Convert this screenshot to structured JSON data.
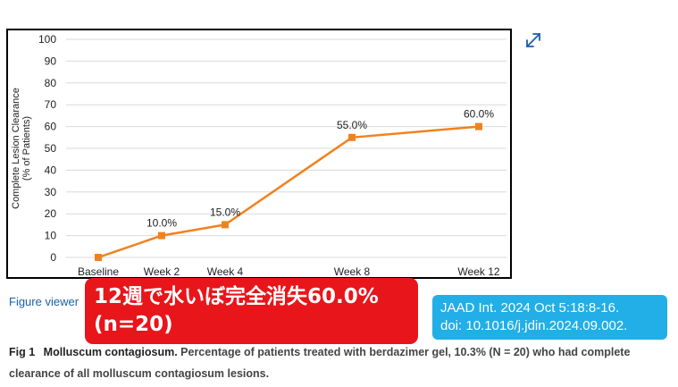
{
  "chart_data": {
    "type": "line",
    "categories": [
      "Baseline",
      "Week 2",
      "Week 4",
      "Week 8",
      "Week 12"
    ],
    "x": [
      0,
      2,
      4,
      8,
      12
    ],
    "series": [
      {
        "values": [
          0,
          10,
          15,
          55,
          60
        ],
        "data_labels": [
          "",
          "10.0%",
          "15.0%",
          "55.0%",
          "60.0%"
        ]
      }
    ],
    "ylabel_lines": [
      "Complete Lesion Clearance",
      "(% of Patients)"
    ],
    "ylim": [
      0,
      100
    ],
    "yticks": [
      0,
      10,
      20,
      30,
      40,
      50,
      60,
      70,
      80,
      90,
      100
    ],
    "grid": true,
    "colors": {
      "series": "#f0821e"
    }
  },
  "ui": {
    "figure_viewer": "Figure viewer",
    "expand_icon": "expand-icon"
  },
  "banner": {
    "line1": "12週で水いぼ完全消失60.0%",
    "line2": "(n=20)"
  },
  "citation": {
    "line1": "JAAD Int. 2024 Oct 5:18:8-16.",
    "line2": "doi: 10.1016/j.jdin.2024.09.002."
  },
  "caption": {
    "label": "Fig 1",
    "title": "Molluscum contagiosum.",
    "text": "Percentage of patients treated with berdazimer gel, 10.3% (N = 20) who had complete clearance of all molluscum contagiosum lesions."
  }
}
